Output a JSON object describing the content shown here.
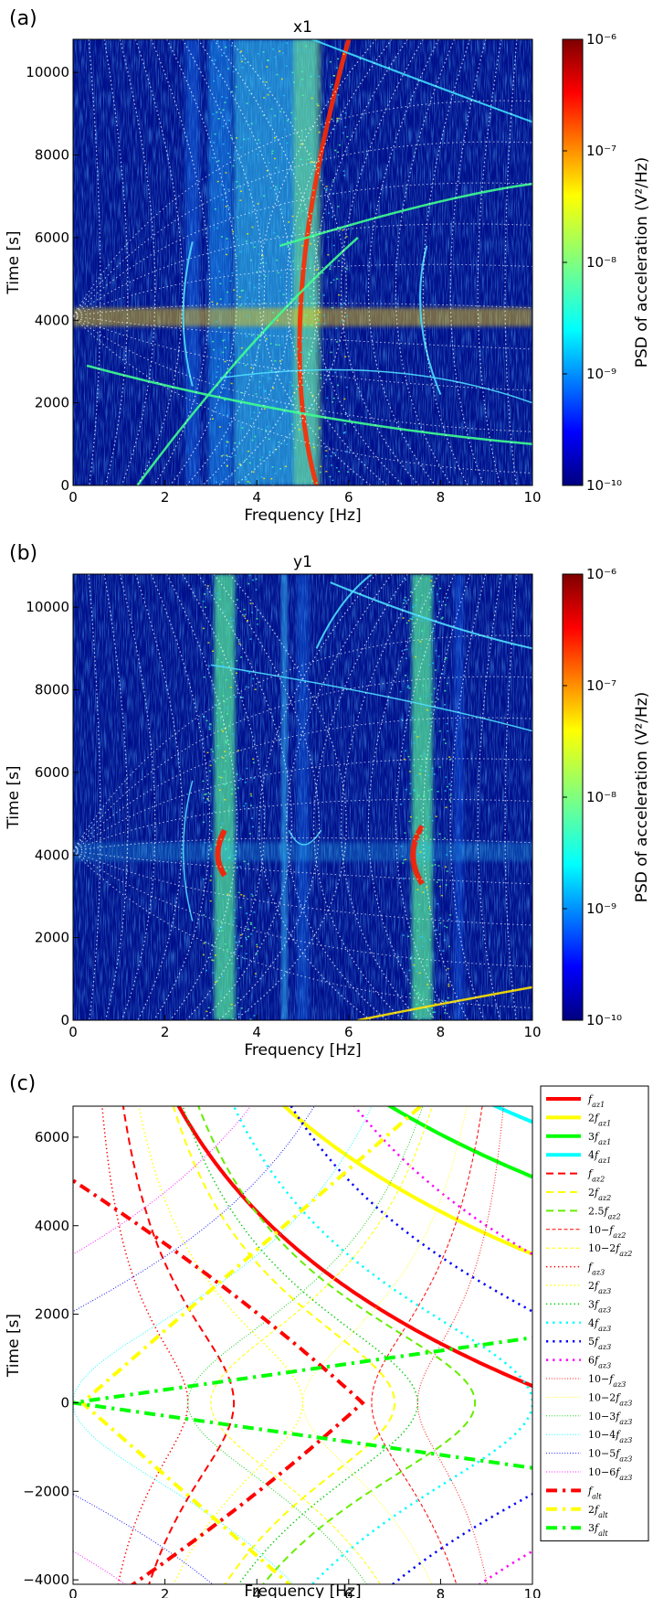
{
  "chart_data": [
    {
      "panel": "(a)",
      "type": "heatmap",
      "title": "x1",
      "xlabel": "Frequency [Hz]",
      "ylabel": "Time [s]",
      "xlim": [
        0,
        10
      ],
      "ylim": [
        0,
        10800
      ],
      "xticks": [
        "0",
        "2",
        "4",
        "6",
        "8",
        "10"
      ],
      "yticks": [
        "0",
        "2000",
        "4000",
        "6000",
        "8000",
        "10000"
      ],
      "colorbar": {
        "label": "PSD of acceleration (V²/Hz)",
        "scale": "log",
        "range": [
          1e-10,
          1e-06
        ],
        "ticks": [
          "10⁻¹⁰",
          "10⁻⁹",
          "10⁻⁸",
          "10⁻⁷",
          "10⁻⁶"
        ]
      },
      "colormap": "jet",
      "overlay": "white dotted predicted-frequency curves"
    },
    {
      "panel": "(b)",
      "type": "heatmap",
      "title": "y1",
      "xlabel": "Frequency [Hz]",
      "ylabel": "Time [s]",
      "xlim": [
        0,
        10
      ],
      "ylim": [
        0,
        10800
      ],
      "xticks": [
        "0",
        "2",
        "4",
        "6",
        "8",
        "10"
      ],
      "yticks": [
        "0",
        "2000",
        "4000",
        "6000",
        "8000",
        "10000"
      ],
      "colorbar": {
        "label": "PSD of acceleration (V²/Hz)",
        "scale": "log",
        "range": [
          1e-10,
          1e-06
        ],
        "ticks": [
          "10⁻¹⁰",
          "10⁻⁹",
          "10⁻⁸",
          "10⁻⁷",
          "10⁻⁶"
        ]
      },
      "colormap": "jet",
      "overlay": "white dotted predicted-frequency curves"
    },
    {
      "panel": "(c)",
      "type": "line",
      "xlabel": "Frequency [Hz]",
      "ylabel": "Time [s]",
      "xlim": [
        0,
        10
      ],
      "ylim": [
        -4100,
        6700
      ],
      "xticks": [
        "0",
        "2",
        "4",
        "6",
        "8",
        "10"
      ],
      "yticks": [
        "−4000",
        "−2000",
        "0",
        "2000",
        "4000",
        "6000"
      ],
      "legend_position": "right",
      "series": [
        {
          "name": "f_az1",
          "color": "#ff0000",
          "style": "solid",
          "width": 4
        },
        {
          "name": "2f_az1",
          "color": "#ffff00",
          "style": "solid",
          "width": 4
        },
        {
          "name": "3f_az1",
          "color": "#00ff00",
          "style": "solid",
          "width": 4
        },
        {
          "name": "4f_az1",
          "color": "#00ffff",
          "style": "solid",
          "width": 4
        },
        {
          "name": "f_az2",
          "color": "#ff0000",
          "style": "dashed",
          "width": 2
        },
        {
          "name": "2f_az2",
          "color": "#ffff00",
          "style": "dashed",
          "width": 2
        },
        {
          "name": "2.5f_az2",
          "color": "#66ee00",
          "style": "dashed",
          "width": 2
        },
        {
          "name": "10−f_az2",
          "color": "#ff0000",
          "style": "dashed",
          "width": 1
        },
        {
          "name": "10−2f_az2",
          "color": "#ffff00",
          "style": "dashed",
          "width": 1
        },
        {
          "name": "f_az3",
          "color": "#ff0000",
          "style": "dotted",
          "width": 1.5
        },
        {
          "name": "2f_az3",
          "color": "#ffff00",
          "style": "dotted",
          "width": 1.5
        },
        {
          "name": "3f_az3",
          "color": "#00cc00",
          "style": "dotted",
          "width": 1.5
        },
        {
          "name": "4f_az3",
          "color": "#00ffff",
          "style": "dotted",
          "width": 2.5
        },
        {
          "name": "5f_az3",
          "color": "#0000ff",
          "style": "dotted",
          "width": 2.5
        },
        {
          "name": "6f_az3",
          "color": "#ff00ff",
          "style": "dotted",
          "width": 2.5
        },
        {
          "name": "10−f_az3",
          "color": "#ff0000",
          "style": "dotted",
          "width": 1
        },
        {
          "name": "10−2f_az3",
          "color": "#ffff00",
          "style": "dotted",
          "width": 1
        },
        {
          "name": "10−3f_az3",
          "color": "#00cc00",
          "style": "dotted",
          "width": 1
        },
        {
          "name": "10−4f_az3",
          "color": "#00ffff",
          "style": "dotted",
          "width": 1
        },
        {
          "name": "10−5f_az3",
          "color": "#0000ff",
          "style": "dotted",
          "width": 1
        },
        {
          "name": "10−6f_az3",
          "color": "#ff00ff",
          "style": "dotted",
          "width": 1
        },
        {
          "name": "f_alt",
          "color": "#ff0000",
          "style": "dashdot",
          "width": 4
        },
        {
          "name": "2f_alt",
          "color": "#ffff00",
          "style": "dashdot",
          "width": 4
        },
        {
          "name": "3f_alt",
          "color": "#00ff00",
          "style": "dashdot",
          "width": 4
        }
      ]
    }
  ],
  "legend_labels": [
    {
      "base": "f",
      "sub": "az1",
      "pre": ""
    },
    {
      "base": "f",
      "sub": "az1",
      "pre": "2"
    },
    {
      "base": "f",
      "sub": "az1",
      "pre": "3"
    },
    {
      "base": "f",
      "sub": "az1",
      "pre": "4"
    },
    {
      "base": "f",
      "sub": "az2",
      "pre": ""
    },
    {
      "base": "f",
      "sub": "az2",
      "pre": "2"
    },
    {
      "base": "f",
      "sub": "az2",
      "pre": "2.5"
    },
    {
      "base": "f",
      "sub": "az2",
      "pre": "10−"
    },
    {
      "base": "f",
      "sub": "az2",
      "pre": "10−2"
    },
    {
      "base": "f",
      "sub": "az3",
      "pre": ""
    },
    {
      "base": "f",
      "sub": "az3",
      "pre": "2"
    },
    {
      "base": "f",
      "sub": "az3",
      "pre": "3"
    },
    {
      "base": "f",
      "sub": "az3",
      "pre": "4"
    },
    {
      "base": "f",
      "sub": "az3",
      "pre": "5"
    },
    {
      "base": "f",
      "sub": "az3",
      "pre": "6"
    },
    {
      "base": "f",
      "sub": "az3",
      "pre": "10−"
    },
    {
      "base": "f",
      "sub": "az3",
      "pre": "10−2"
    },
    {
      "base": "f",
      "sub": "az3",
      "pre": "10−3"
    },
    {
      "base": "f",
      "sub": "az3",
      "pre": "10−4"
    },
    {
      "base": "f",
      "sub": "az3",
      "pre": "10−5"
    },
    {
      "base": "f",
      "sub": "az3",
      "pre": "10−6"
    },
    {
      "base": "f",
      "sub": "alt",
      "pre": ""
    },
    {
      "base": "f",
      "sub": "alt",
      "pre": "2"
    },
    {
      "base": "f",
      "sub": "alt",
      "pre": "3"
    }
  ]
}
